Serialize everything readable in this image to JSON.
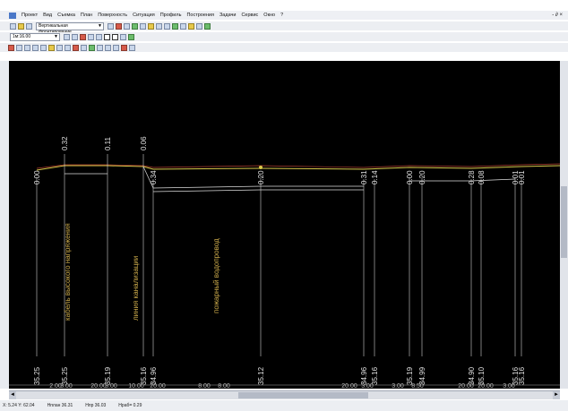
{
  "menu": {
    "items": [
      "Проект",
      "Вид",
      "Съемка",
      "План",
      "Поверхность",
      "Ситуация",
      "Профиль",
      "Построения",
      "Задачи",
      "Сервис",
      "Окно",
      "?"
    ],
    "window_controls": "- ∂ ×"
  },
  "toolbar2": {
    "dropdown_value": "Вертикальная фронтирование"
  },
  "toolbar3": {
    "scale_value": "1м:16.00"
  },
  "profile": {
    "top_values": [
      {
        "text": "0.00"
      },
      {
        "text": "0.32"
      },
      {
        "text": "0.11"
      },
      {
        "text": "0.06"
      },
      {
        "text": "0.34"
      },
      {
        "text": "0.20"
      },
      {
        "text": "0.31"
      },
      {
        "text": "0.14"
      },
      {
        "text": "0.00"
      },
      {
        "text": "0.20"
      },
      {
        "text": "0.28"
      },
      {
        "text": "0.08"
      },
      {
        "text": "0.01"
      },
      {
        "text": "0.01"
      }
    ],
    "bottom_values": [
      {
        "text": "35.25"
      },
      {
        "text": "35.25"
      },
      {
        "text": "35.19"
      },
      {
        "text": "35.16"
      },
      {
        "text": "34.96"
      },
      {
        "text": "35.12"
      },
      {
        "text": "34.96"
      },
      {
        "text": "35.16"
      },
      {
        "text": "35.19"
      },
      {
        "text": "34.99"
      },
      {
        "text": "34.90"
      },
      {
        "text": "35.10"
      },
      {
        "text": "35.16"
      },
      {
        "text": "35.16"
      }
    ],
    "feature_labels": [
      {
        "text": "кабель высокого напряжения"
      },
      {
        "text": "линия канализации"
      },
      {
        "text": "пожарный водопровод"
      }
    ],
    "distance_labels": [
      {
        "text": "2.00"
      },
      {
        "text": "3.00"
      },
      {
        "text": "20.00"
      },
      {
        "text": "3.00"
      },
      {
        "text": "10.00"
      },
      {
        "text": "20.00"
      },
      {
        "text": "8.00"
      },
      {
        "text": "8.00"
      },
      {
        "text": "20.00"
      },
      {
        "text": "3.00"
      },
      {
        "text": "3.00"
      },
      {
        "text": "8.50"
      },
      {
        "text": "20.00"
      },
      {
        "text": "20.00"
      },
      {
        "text": "3.00"
      }
    ]
  },
  "status": {
    "coords": "Х: 5.24 Y: 62.04",
    "h_planned": "Нплан 36.31",
    "h_design": "Нпр 36.03",
    "h_work": "Нраб= 0.29"
  },
  "colors": {
    "canvas_bg": "#000000",
    "profile_line": "#d9c94a",
    "label_text": "#e0e0e0",
    "feature_text": "#c9a84a"
  }
}
